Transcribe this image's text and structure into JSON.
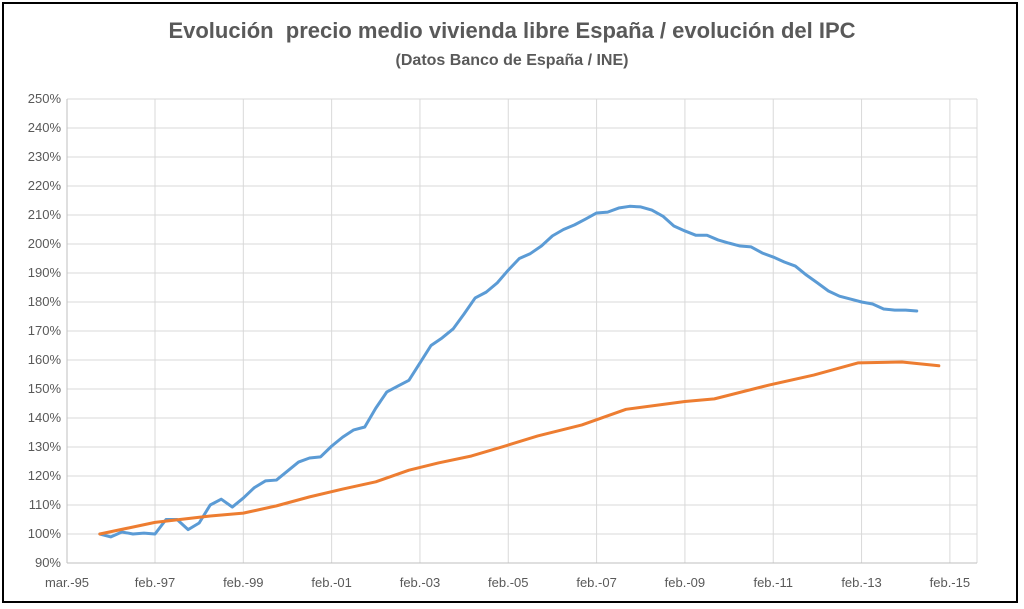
{
  "chart_data": {
    "type": "line",
    "title": "Evolución  precio medio vivienda libre España / evolución del IPC",
    "subtitle": "(Datos Banco de España / INE)",
    "xlabel": "",
    "ylabel": "",
    "ylim": [
      0.9,
      2.5
    ],
    "y_ticks": [
      "90%",
      "100%",
      "110%",
      "120%",
      "130%",
      "140%",
      "150%",
      "160%",
      "170%",
      "180%",
      "190%",
      "200%",
      "210%",
      "220%",
      "230%",
      "240%",
      "250%"
    ],
    "x_ticks": [
      {
        "label": "mar.-95",
        "date": "1995-03"
      },
      {
        "label": "feb.-97",
        "date": "1997-02"
      },
      {
        "label": "feb.-99",
        "date": "1999-02"
      },
      {
        "label": "feb.-01",
        "date": "2001-02"
      },
      {
        "label": "feb.-03",
        "date": "2003-02"
      },
      {
        "label": "feb.-05",
        "date": "2005-02"
      },
      {
        "label": "feb.-07",
        "date": "2007-02"
      },
      {
        "label": "feb.-09",
        "date": "2009-02"
      },
      {
        "label": "feb.-11",
        "date": "2011-02"
      },
      {
        "label": "feb.-13",
        "date": "2013-02"
      },
      {
        "label": "feb.-15",
        "date": "2015-02"
      }
    ],
    "grid": true,
    "legend": "none",
    "series": [
      {
        "color": "#5B9BD5",
        "start": "1995-11",
        "step_months": 3,
        "values": [
          1.0,
          0.99,
          1.007,
          1.0,
          1.003,
          1.0,
          1.05,
          1.05,
          1.015,
          1.038,
          1.1,
          1.12,
          1.093,
          1.124,
          1.16,
          1.183,
          1.186,
          1.217,
          1.248,
          1.262,
          1.266,
          1.303,
          1.334,
          1.359,
          1.369,
          1.434,
          1.49,
          1.51,
          1.53,
          1.59,
          1.65,
          1.676,
          1.707,
          1.759,
          1.814,
          1.834,
          1.866,
          1.91,
          1.95,
          1.967,
          1.993,
          2.028,
          2.05,
          2.066,
          2.086,
          2.107,
          2.11,
          2.124,
          2.13,
          2.128,
          2.117,
          2.096,
          2.062,
          2.045,
          2.03,
          2.03,
          2.014,
          2.003,
          1.993,
          1.99,
          1.969,
          1.955,
          1.938,
          1.924,
          1.893,
          1.866,
          1.838,
          1.82,
          1.81,
          1.8,
          1.793,
          1.776,
          1.772,
          1.772,
          1.769
        ]
      },
      {
        "color": "#ED7D31",
        "points": [
          [
            "1995-11",
            1.0
          ],
          [
            "1997-02",
            1.04
          ],
          [
            "1998-05",
            1.062
          ],
          [
            "1999-02",
            1.072
          ],
          [
            "1999-11",
            1.097
          ],
          [
            "2000-08",
            1.128
          ],
          [
            "2001-05",
            1.155
          ],
          [
            "2002-02",
            1.18
          ],
          [
            "2002-11",
            1.22
          ],
          [
            "2003-07",
            1.245
          ],
          [
            "2004-04",
            1.269
          ],
          [
            "2005-01",
            1.303
          ],
          [
            "2005-10",
            1.338
          ],
          [
            "2006-10",
            1.376
          ],
          [
            "2007-10",
            1.43
          ],
          [
            "2009-02",
            1.457
          ],
          [
            "2009-10",
            1.466
          ],
          [
            "2011-01",
            1.514
          ],
          [
            "2012-01",
            1.548
          ],
          [
            "2013-01",
            1.59
          ],
          [
            "2014-01",
            1.593
          ],
          [
            "2014-11",
            1.58
          ]
        ]
      }
    ]
  }
}
